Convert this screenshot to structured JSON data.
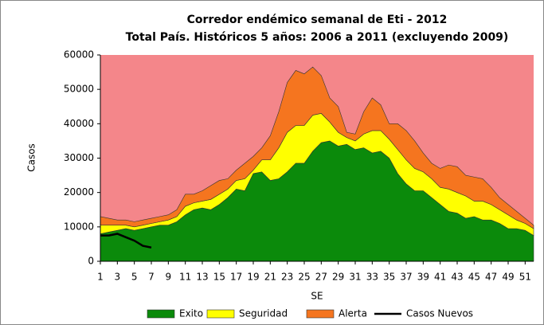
{
  "chart_data": {
    "type": "stacked_area",
    "title": "Corredor endémico semanal de Eti - 2012",
    "subtitle": "Total País. Históricos 5 años: 2006 a 2011 (excluyendo 2009)",
    "x_label": "SE",
    "y_label": "Casos",
    "x": [
      1,
      2,
      3,
      4,
      5,
      6,
      7,
      8,
      9,
      10,
      11,
      12,
      13,
      14,
      15,
      16,
      17,
      18,
      19,
      20,
      21,
      22,
      23,
      24,
      25,
      26,
      27,
      28,
      29,
      30,
      31,
      32,
      33,
      34,
      35,
      36,
      37,
      38,
      39,
      40,
      41,
      42,
      43,
      44,
      45,
      46,
      47,
      48,
      49,
      50,
      51,
      52
    ],
    "xlim": [
      1,
      52
    ],
    "xticks": [
      1,
      3,
      5,
      7,
      9,
      11,
      13,
      15,
      17,
      19,
      21,
      23,
      25,
      27,
      29,
      31,
      33,
      35,
      37,
      39,
      41,
      43,
      45,
      47,
      49,
      51
    ],
    "ylim": [
      0,
      60000
    ],
    "yticks": [
      0,
      10000,
      20000,
      30000,
      40000,
      50000,
      60000
    ],
    "plot_background": "#f4868a",
    "series": [
      {
        "name": "Exito",
        "color": "#0b8a0b",
        "stacked": true,
        "values": [
          8000,
          8500,
          9000,
          9500,
          9000,
          9500,
          10000,
          10500,
          10500,
          11500,
          13500,
          15000,
          15500,
          15000,
          16500,
          18500,
          21000,
          20500,
          25500,
          26000,
          23500,
          24000,
          26000,
          28500,
          28500,
          32000,
          34500,
          35000,
          33500,
          34000,
          32500,
          33000,
          31500,
          32000,
          30000,
          25500,
          22500,
          20500,
          20500,
          18500,
          16500,
          14500,
          14000,
          12500,
          13000,
          12000,
          12000,
          11000,
          9500,
          9500,
          9000,
          7500
        ]
      },
      {
        "name": "Seguridad",
        "color": "#ffff00",
        "stacked": true,
        "values": [
          2500,
          2000,
          1500,
          1000,
          1000,
          1000,
          1000,
          1000,
          1500,
          1500,
          2500,
          2000,
          2000,
          3000,
          3000,
          2500,
          2500,
          3500,
          1000,
          3500,
          6000,
          9000,
          11500,
          11000,
          11000,
          10500,
          8500,
          5500,
          4000,
          2000,
          2500,
          4000,
          6500,
          6000,
          5500,
          7000,
          7000,
          6500,
          5500,
          5500,
          5000,
          6500,
          6000,
          6500,
          4500,
          5500,
          4500,
          4000,
          4000,
          2500,
          2000,
          2000
        ]
      },
      {
        "name": "Alerta",
        "color": "#f5751f",
        "stacked": true,
        "values": [
          2500,
          2000,
          1500,
          1500,
          1500,
          1500,
          1500,
          1500,
          1500,
          2000,
          3500,
          2500,
          3000,
          4000,
          4000,
          3000,
          3000,
          4500,
          4000,
          3500,
          7000,
          10500,
          14500,
          16000,
          15000,
          14000,
          11000,
          7000,
          7500,
          1500,
          2000,
          6500,
          9500,
          7500,
          4500,
          7500,
          8500,
          8000,
          5500,
          4500,
          5500,
          7000,
          7500,
          6000,
          7000,
          6500,
          5000,
          3500,
          3000,
          2500,
          1500,
          1000
        ]
      },
      {
        "name": "Casos Nuevos",
        "color": "#000000",
        "stacked": false,
        "values": [
          7500,
          7500,
          8000,
          7000,
          6000,
          4500,
          4000,
          null,
          null,
          null,
          null,
          null,
          null,
          null,
          null,
          null,
          null,
          null,
          null,
          null,
          null,
          null,
          null,
          null,
          null,
          null,
          null,
          null,
          null,
          null,
          null,
          null,
          null,
          null,
          null,
          null,
          null,
          null,
          null,
          null,
          null,
          null,
          null,
          null,
          null,
          null,
          null,
          null,
          null,
          null,
          null,
          null
        ]
      }
    ]
  }
}
